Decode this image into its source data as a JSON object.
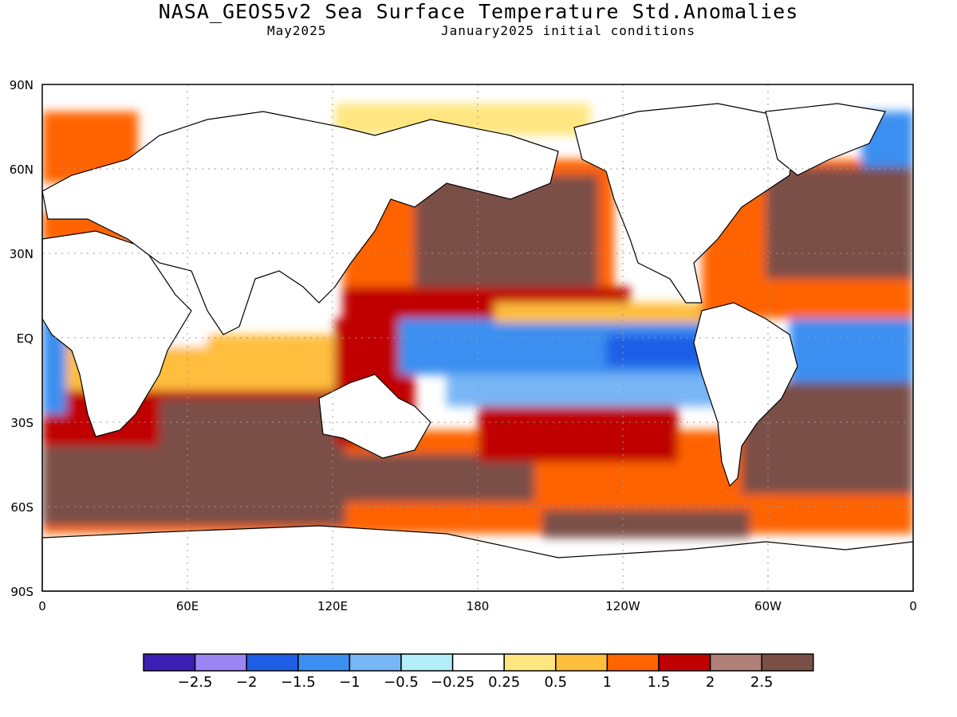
{
  "header": {
    "title": "NASA_GEOS5v2 Sea Surface Temperature Std.Anomalies",
    "valid_month": "May2025",
    "initial_conditions": "January2025 initial conditions"
  },
  "axes": {
    "lat_labels": [
      "90N",
      "60N",
      "30N",
      "EQ",
      "30S",
      "60S",
      "90S"
    ],
    "lon_labels": [
      "0",
      "60E",
      "120E",
      "180",
      "120W",
      "60W",
      "0"
    ],
    "grid": "dotted"
  },
  "colorbar": {
    "colors": [
      "#3c1fb4",
      "#9d84f5",
      "#1e5ee6",
      "#3a8ff0",
      "#78b6f5",
      "#b3eefa",
      "#ffffff",
      "#ffe680",
      "#ffbe3c",
      "#ff6400",
      "#c00000",
      "#b08078",
      "#7a5046"
    ],
    "labels": [
      "−2.5",
      "−2",
      "−1.5",
      "−1",
      "−0.5",
      "−0.25",
      "0.25",
      "0.5",
      "1",
      "1.5",
      "2",
      "2.5"
    ]
  },
  "map_data": {
    "land_color": "#ffffff",
    "coastline_color": "#000000",
    "anomaly_regions": [
      {
        "region": "Southern Ocean band",
        "level": 2.5
      },
      {
        "region": "North Pacific",
        "level": 2.5
      },
      {
        "region": "North Atlantic",
        "level": 2.5
      },
      {
        "region": "Tropical west Pacific",
        "level": 2
      },
      {
        "region": "Equatorial east Pacific",
        "level": -1
      },
      {
        "region": "Equatorial Atlantic",
        "level": -1
      },
      {
        "region": "Tropical Indian Ocean",
        "level": 0.5
      },
      {
        "region": "Arctic coast",
        "level": 0.5
      }
    ]
  }
}
